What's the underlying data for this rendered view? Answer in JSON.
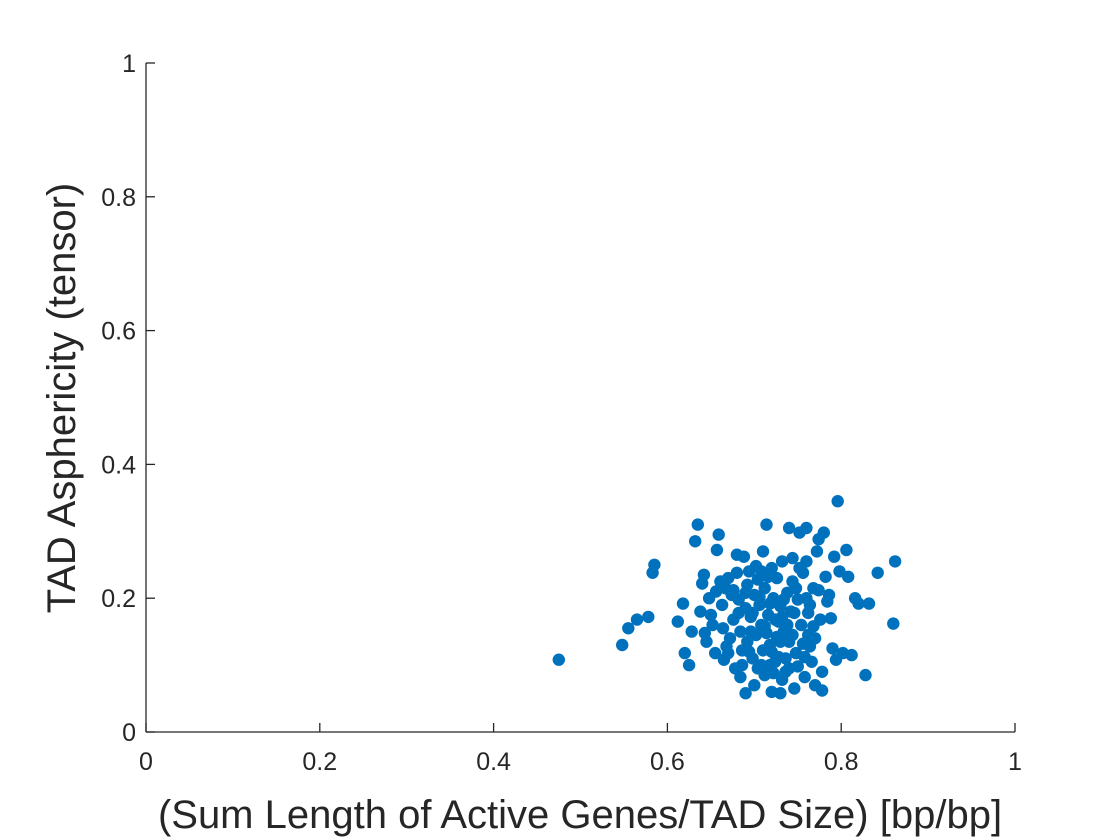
{
  "chart_data": {
    "type": "scatter",
    "title": "",
    "xlabel": "(Sum Length of Active Genes/TAD Size) [bp/bp]",
    "ylabel": "TAD Asphericity (tensor)",
    "xlim": [
      0,
      1
    ],
    "ylim": [
      0,
      1
    ],
    "grid": false,
    "legend": "none",
    "x_ticks": [
      "0",
      "0.2",
      "0.4",
      "0.6",
      "0.8",
      "1"
    ],
    "y_ticks": [
      "0",
      "0.2",
      "0.4",
      "0.6",
      "0.8",
      "1"
    ],
    "marker_color": "#0072BD",
    "series": [
      {
        "points": [
          [
            0.475,
            0.108
          ],
          [
            0.548,
            0.13
          ],
          [
            0.555,
            0.155
          ],
          [
            0.565,
            0.168
          ],
          [
            0.578,
            0.172
          ],
          [
            0.583,
            0.238
          ],
          [
            0.585,
            0.25
          ],
          [
            0.612,
            0.165
          ],
          [
            0.618,
            0.192
          ],
          [
            0.62,
            0.118
          ],
          [
            0.625,
            0.1
          ],
          [
            0.628,
            0.15
          ],
          [
            0.632,
            0.285
          ],
          [
            0.635,
            0.31
          ],
          [
            0.638,
            0.18
          ],
          [
            0.64,
            0.222
          ],
          [
            0.642,
            0.235
          ],
          [
            0.643,
            0.148
          ],
          [
            0.645,
            0.135
          ],
          [
            0.648,
            0.2
          ],
          [
            0.65,
            0.175
          ],
          [
            0.652,
            0.16
          ],
          [
            0.655,
            0.118
          ],
          [
            0.657,
            0.272
          ],
          [
            0.659,
            0.295
          ],
          [
            0.661,
            0.225
          ],
          [
            0.663,
            0.19
          ],
          [
            0.665,
            0.108
          ],
          [
            0.667,
            0.215
          ],
          [
            0.67,
            0.23
          ],
          [
            0.672,
            0.14
          ],
          [
            0.674,
            0.205
          ],
          [
            0.676,
            0.168
          ],
          [
            0.678,
            0.095
          ],
          [
            0.68,
            0.238
          ],
          [
            0.68,
            0.265
          ],
          [
            0.682,
            0.198
          ],
          [
            0.684,
            0.15
          ],
          [
            0.686,
            0.122
          ],
          [
            0.688,
            0.262
          ],
          [
            0.69,
            0.185
          ],
          [
            0.69,
            0.058
          ],
          [
            0.692,
            0.22
          ],
          [
            0.694,
            0.24
          ],
          [
            0.696,
            0.172
          ],
          [
            0.698,
            0.11
          ],
          [
            0.7,
            0.07
          ],
          [
            0.7,
            0.205
          ],
          [
            0.702,
            0.145
          ],
          [
            0.704,
            0.228
          ],
          [
            0.706,
            0.19
          ],
          [
            0.708,
            0.16
          ],
          [
            0.708,
            0.1
          ],
          [
            0.71,
            0.27
          ],
          [
            0.712,
            0.085
          ],
          [
            0.712,
            0.215
          ],
          [
            0.714,
            0.31
          ],
          [
            0.716,
            0.175
          ],
          [
            0.718,
            0.13
          ],
          [
            0.72,
            0.245
          ],
          [
            0.72,
            0.06
          ],
          [
            0.722,
            0.2
          ],
          [
            0.724,
            0.168
          ],
          [
            0.726,
            0.23
          ],
          [
            0.728,
            0.112
          ],
          [
            0.73,
            0.058
          ],
          [
            0.73,
            0.188
          ],
          [
            0.732,
            0.255
          ],
          [
            0.734,
            0.15
          ],
          [
            0.736,
            0.09
          ],
          [
            0.738,
            0.208
          ],
          [
            0.74,
            0.305
          ],
          [
            0.74,
            0.135
          ],
          [
            0.742,
            0.18
          ],
          [
            0.744,
            0.225
          ],
          [
            0.746,
            0.065
          ],
          [
            0.748,
            0.118
          ],
          [
            0.75,
            0.198
          ],
          [
            0.752,
            0.298
          ],
          [
            0.754,
            0.16
          ],
          [
            0.756,
            0.238
          ],
          [
            0.758,
            0.082
          ],
          [
            0.76,
            0.255
          ],
          [
            0.76,
            0.305
          ],
          [
            0.762,
            0.145
          ],
          [
            0.764,
            0.19
          ],
          [
            0.766,
            0.105
          ],
          [
            0.768,
            0.215
          ],
          [
            0.77,
            0.07
          ],
          [
            0.772,
            0.27
          ],
          [
            0.774,
            0.288
          ],
          [
            0.776,
            0.168
          ],
          [
            0.778,
            0.062
          ],
          [
            0.78,
            0.298
          ],
          [
            0.782,
            0.232
          ],
          [
            0.784,
            0.195
          ],
          [
            0.786,
            0.205
          ],
          [
            0.788,
            0.17
          ],
          [
            0.79,
            0.125
          ],
          [
            0.792,
            0.262
          ],
          [
            0.794,
            0.108
          ],
          [
            0.796,
            0.345
          ],
          [
            0.798,
            0.24
          ],
          [
            0.802,
            0.118
          ],
          [
            0.806,
            0.272
          ],
          [
            0.808,
            0.232
          ],
          [
            0.812,
            0.115
          ],
          [
            0.816,
            0.2
          ],
          [
            0.82,
            0.192
          ],
          [
            0.828,
            0.085
          ],
          [
            0.832,
            0.192
          ],
          [
            0.842,
            0.238
          ],
          [
            0.86,
            0.162
          ],
          [
            0.862,
            0.255
          ],
          [
            0.668,
            0.128
          ],
          [
            0.684,
            0.082
          ],
          [
            0.692,
            0.135
          ],
          [
            0.698,
            0.178
          ],
          [
            0.704,
            0.095
          ],
          [
            0.714,
            0.148
          ],
          [
            0.718,
            0.192
          ],
          [
            0.724,
            0.105
          ],
          [
            0.726,
            0.142
          ],
          [
            0.732,
            0.172
          ],
          [
            0.736,
            0.11
          ],
          [
            0.744,
            0.145
          ],
          [
            0.75,
            0.098
          ],
          [
            0.756,
            0.132
          ],
          [
            0.762,
            0.178
          ],
          [
            0.77,
            0.14
          ],
          [
            0.774,
            0.212
          ],
          [
            0.778,
            0.09
          ],
          [
            0.69,
            0.208
          ],
          [
            0.702,
            0.248
          ],
          [
            0.71,
            0.122
          ],
          [
            0.716,
            0.232
          ],
          [
            0.722,
            0.088
          ],
          [
            0.728,
            0.165
          ],
          [
            0.734,
            0.198
          ],
          [
            0.74,
            0.095
          ],
          [
            0.746,
            0.178
          ],
          [
            0.752,
            0.245
          ],
          [
            0.758,
            0.112
          ],
          [
            0.764,
            0.128
          ],
          [
            0.676,
            0.212
          ],
          [
            0.682,
            0.178
          ],
          [
            0.694,
            0.12
          ],
          [
            0.706,
            0.202
          ],
          [
            0.712,
            0.158
          ],
          [
            0.718,
            0.1
          ],
          [
            0.73,
            0.135
          ],
          [
            0.738,
            0.16
          ],
          [
            0.748,
            0.215
          ],
          [
            0.76,
            0.2
          ],
          [
            0.656,
            0.21
          ],
          [
            0.664,
            0.155
          ],
          [
            0.67,
            0.118
          ],
          [
            0.686,
            0.1
          ],
          [
            0.696,
            0.15
          ],
          [
            0.708,
            0.24
          ],
          [
            0.72,
            0.12
          ],
          [
            0.732,
            0.078
          ],
          [
            0.744,
            0.26
          ],
          [
            0.768,
            0.158
          ]
        ]
      }
    ]
  }
}
